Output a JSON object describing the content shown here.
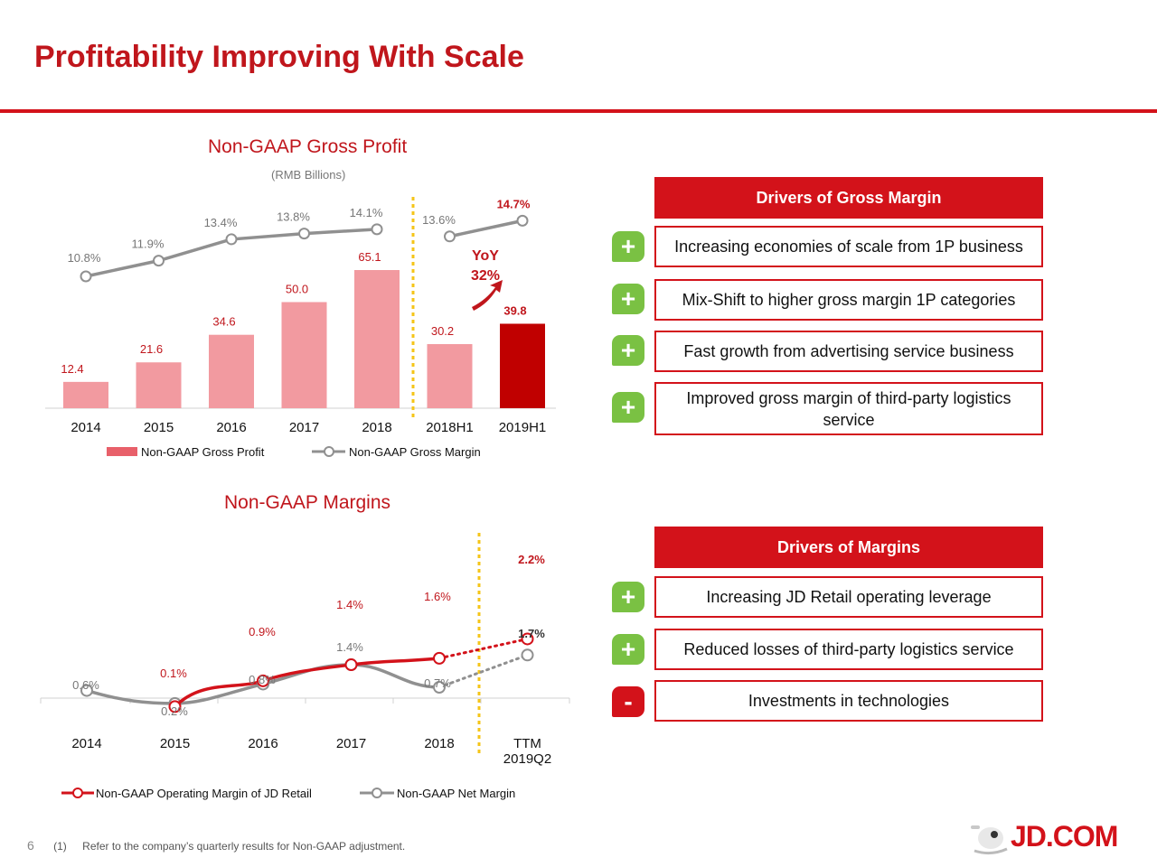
{
  "page": {
    "title": "Profitability Improving With Scale",
    "page_number": "6",
    "footnote_marker": "(1)",
    "footnote": "Refer to the company’s quarterly results for Non-GAAP adjustment.",
    "logo_text": "JD.COM"
  },
  "colors": {
    "brand_red": "#d3121a",
    "bar_pink": "#f29aa0",
    "bar_highlight": "#c00000",
    "margin_line": "#909090",
    "plus_green": "#7ac143",
    "dotted_divider": "#f5c518"
  },
  "chart_data": [
    {
      "type": "bar",
      "title": "Non-GAAP Gross Profit",
      "subtitle": "(RMB Billions)",
      "categories": [
        "2014",
        "2015",
        "2016",
        "2017",
        "2018",
        "2018H1",
        "2019H1"
      ],
      "series": [
        {
          "name": "Non-GAAP Gross Profit",
          "values": [
            12.4,
            21.6,
            34.6,
            50.0,
            65.1,
            30.2,
            39.8
          ],
          "labels": [
            "12.4",
            "21.6",
            "34.6",
            "50.0",
            "65.1",
            "30.2",
            "39.8"
          ],
          "highlight_index": 6
        },
        {
          "name": "Non-GAAP Gross Margin",
          "type": "line",
          "values": [
            10.8,
            11.9,
            13.4,
            13.8,
            14.1,
            13.6,
            14.7
          ],
          "labels": [
            "10.8%",
            "11.9%",
            "13.4%",
            "13.8%",
            "14.1%",
            "13.6%",
            "14.7%"
          ]
        }
      ],
      "annotation": {
        "line1": "YoY",
        "line2": "32%"
      },
      "legend": "bottom"
    },
    {
      "type": "line",
      "title": "Non-GAAP Margins",
      "categories": [
        "2014",
        "2015",
        "2016",
        "2017",
        "2018",
        "TTM"
      ],
      "category_sublabel": "2019Q2",
      "series": [
        {
          "name": "Non-GAAP Operating Margin of JD Retail",
          "values": [
            null,
            0.1,
            0.9,
            1.4,
            1.6,
            2.2
          ],
          "labels": [
            "",
            "0.1%",
            "0.9%",
            "1.4%",
            "1.6%",
            "2.2%"
          ]
        },
        {
          "name": "Non-GAAP Net Margin",
          "values": [
            0.6,
            0.2,
            0.8,
            1.4,
            0.7,
            1.7
          ],
          "labels": [
            "0.6%",
            "0.2%",
            "0.8%",
            "1.4%",
            "0.7%",
            "1.7%"
          ]
        }
      ],
      "legend": "bottom"
    }
  ],
  "gross_margin_drivers": {
    "heading": "Drivers of Gross Margin",
    "items": [
      {
        "sign": "+",
        "text": "Increasing economies of scale from 1P business"
      },
      {
        "sign": "+",
        "text": "Mix-Shift to higher gross margin 1P categories"
      },
      {
        "sign": "+",
        "text": "Fast growth from advertising service business"
      },
      {
        "sign": "+",
        "text": "Improved gross margin of third-party logistics service"
      }
    ]
  },
  "margin_drivers": {
    "heading": "Drivers of Margins",
    "items": [
      {
        "sign": "+",
        "text": "Increasing JD Retail operating leverage"
      },
      {
        "sign": "+",
        "text": "Reduced losses of third-party logistics service"
      },
      {
        "sign": "-",
        "text": "Investments in technologies"
      }
    ]
  }
}
